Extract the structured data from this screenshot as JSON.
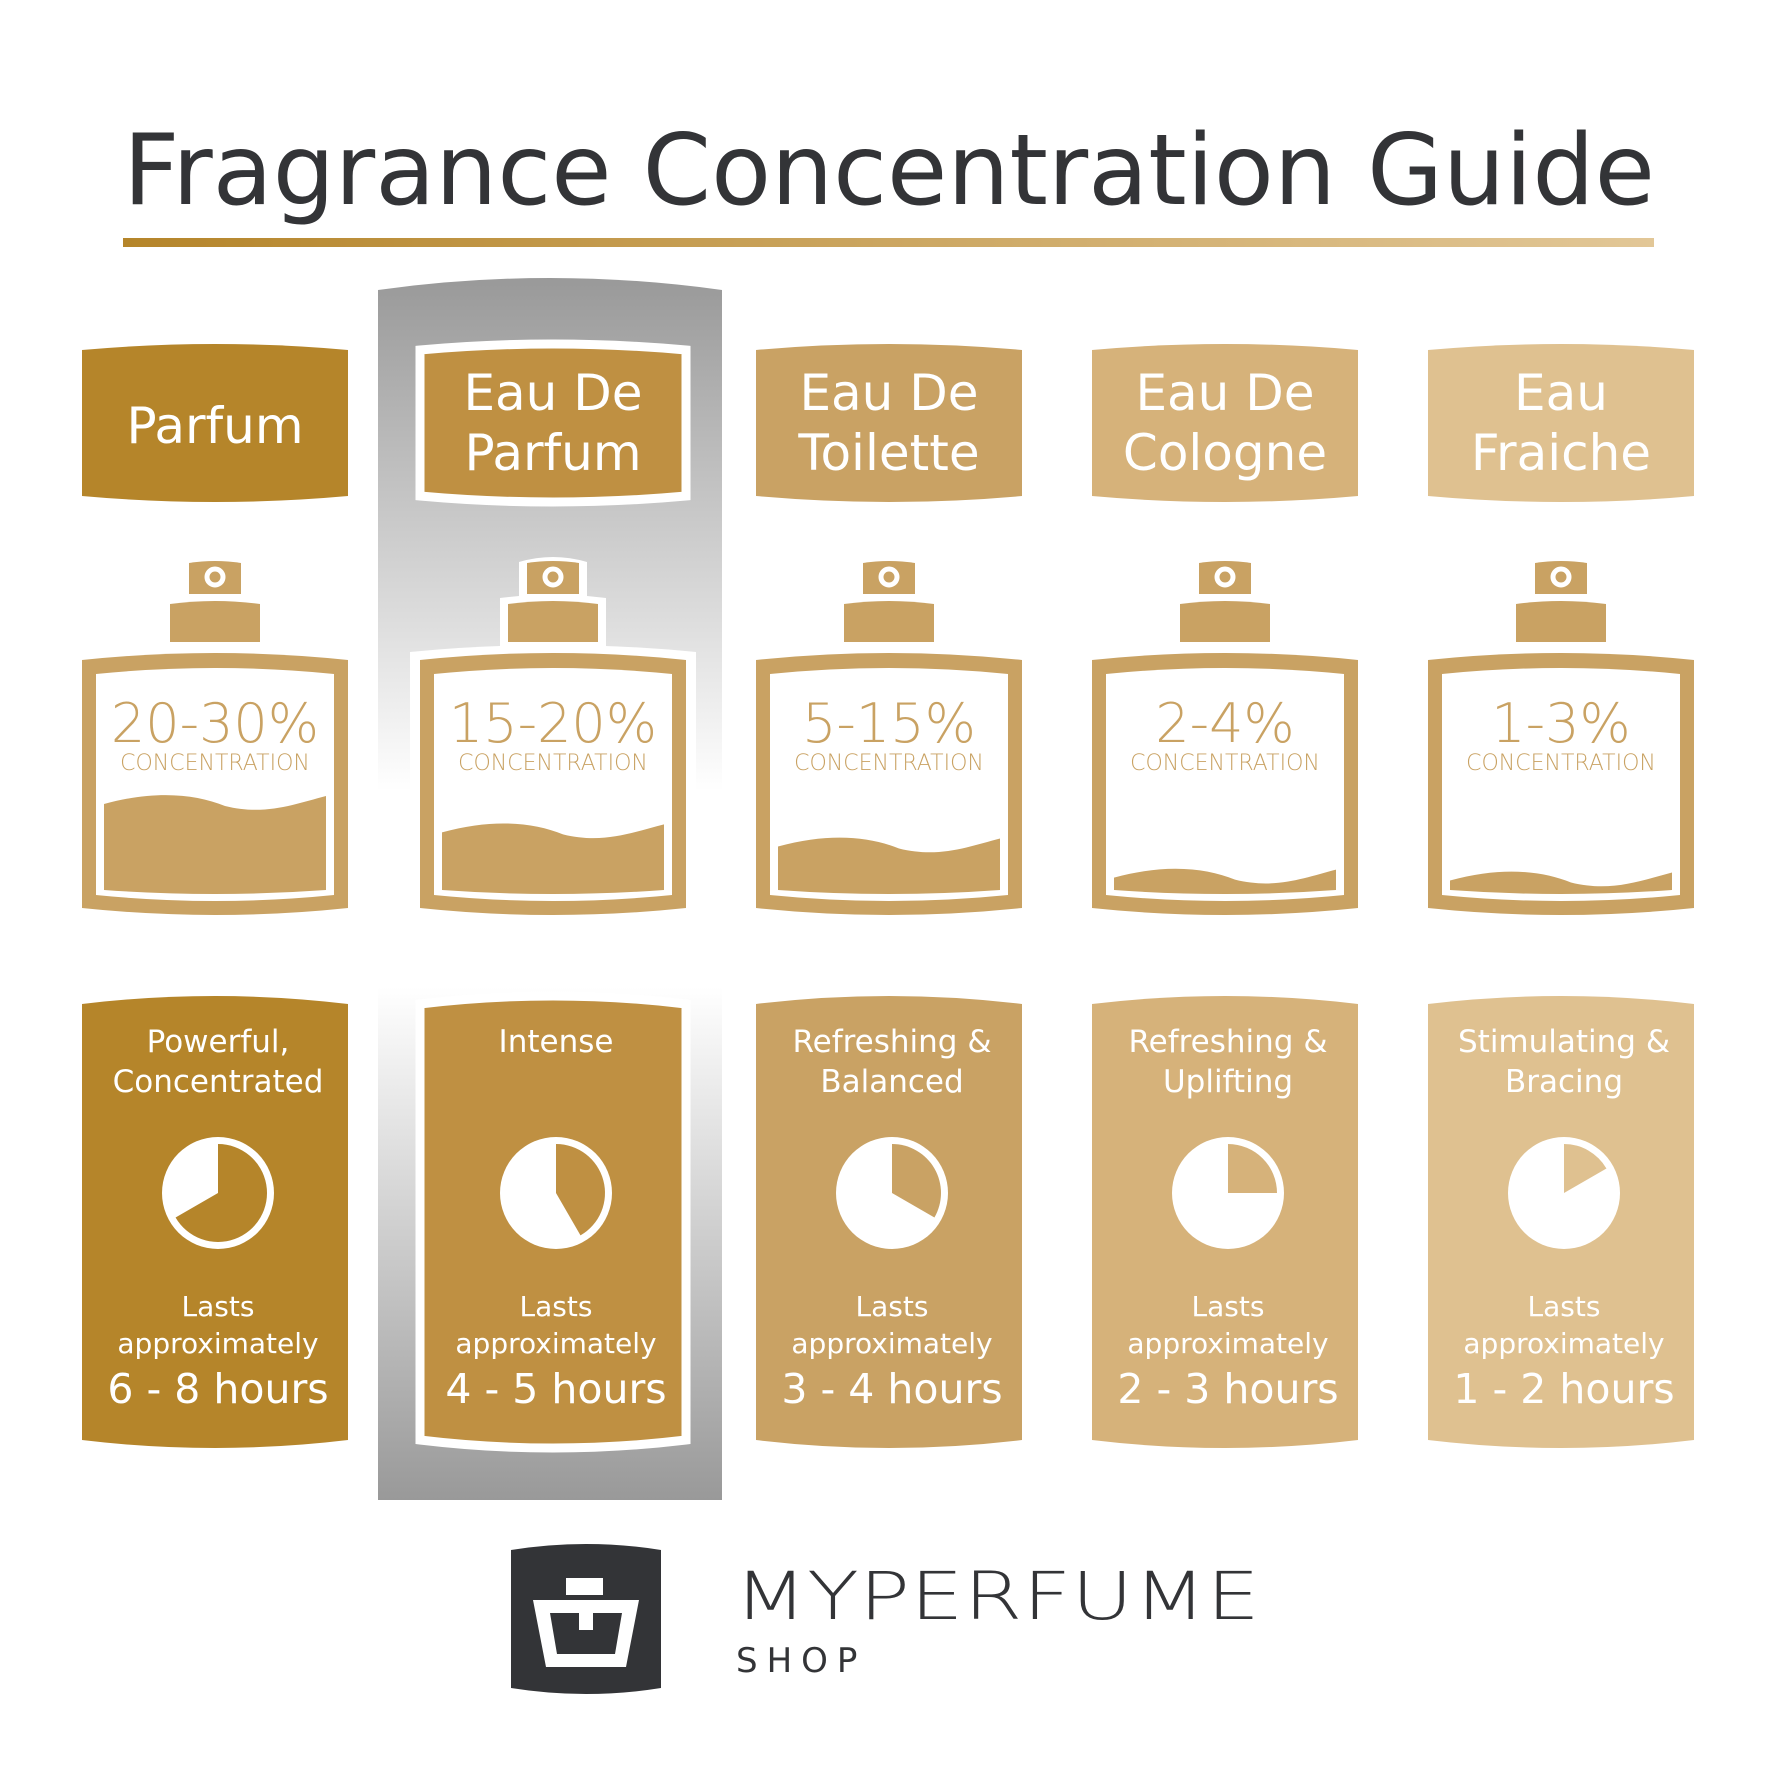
{
  "title": "Fragrance Concentration Guide",
  "colors": {
    "text_dark": "#333437",
    "bottle": "#c9a263",
    "highlight_gray": "#999999",
    "white": "#ffffff"
  },
  "highlighted_index": 1,
  "columns": [
    {
      "name": [
        "Parfum"
      ],
      "color": "#b5852a",
      "concentration": "20-30%",
      "concentration_label": "CONCENTRATION",
      "liquid_level": 0.3,
      "character": [
        "Powerful,",
        "Concentrated"
      ],
      "lasts": [
        "Lasts",
        "approximately"
      ],
      "hours": "6 - 8 hours",
      "clock_hours": 8
    },
    {
      "name": [
        "Eau De",
        "Parfum"
      ],
      "color": "#bf9042",
      "concentration": "15-20%",
      "concentration_label": "CONCENTRATION",
      "liquid_level": 0.2,
      "character": [
        "Intense"
      ],
      "lasts": [
        "Lasts",
        "approximately"
      ],
      "hours": "4 - 5 hours",
      "clock_hours": 5
    },
    {
      "name": [
        "Eau De",
        "Toilette"
      ],
      "color": "#c9a264",
      "concentration": "5-15%",
      "concentration_label": "CONCENTRATION",
      "liquid_level": 0.15,
      "character": [
        "Refreshing &",
        "Balanced"
      ],
      "lasts": [
        "Lasts",
        "approximately"
      ],
      "hours": "3 - 4 hours",
      "clock_hours": 4
    },
    {
      "name": [
        "Eau De",
        "Cologne"
      ],
      "color": "#d6b27a",
      "concentration": "2-4%",
      "concentration_label": "CONCENTRATION",
      "liquid_level": 0.04,
      "character": [
        "Refreshing &",
        "Uplifting"
      ],
      "lasts": [
        "Lasts",
        "approximately"
      ],
      "hours": "2 - 3 hours",
      "clock_hours": 3
    },
    {
      "name": [
        "Eau",
        "Fraiche"
      ],
      "color": "#dfc190",
      "concentration": "1-3%",
      "concentration_label": "CONCENTRATION",
      "liquid_level": 0.03,
      "character": [
        "Stimulating &",
        "Bracing"
      ],
      "lasts": [
        "Lasts",
        "approximately"
      ],
      "hours": "1 - 2 hours",
      "clock_hours": 2
    }
  ],
  "logo": {
    "brand": "MYPERFUME",
    "sub": "SHOP",
    "icon": "perfume-bottle-icon"
  }
}
